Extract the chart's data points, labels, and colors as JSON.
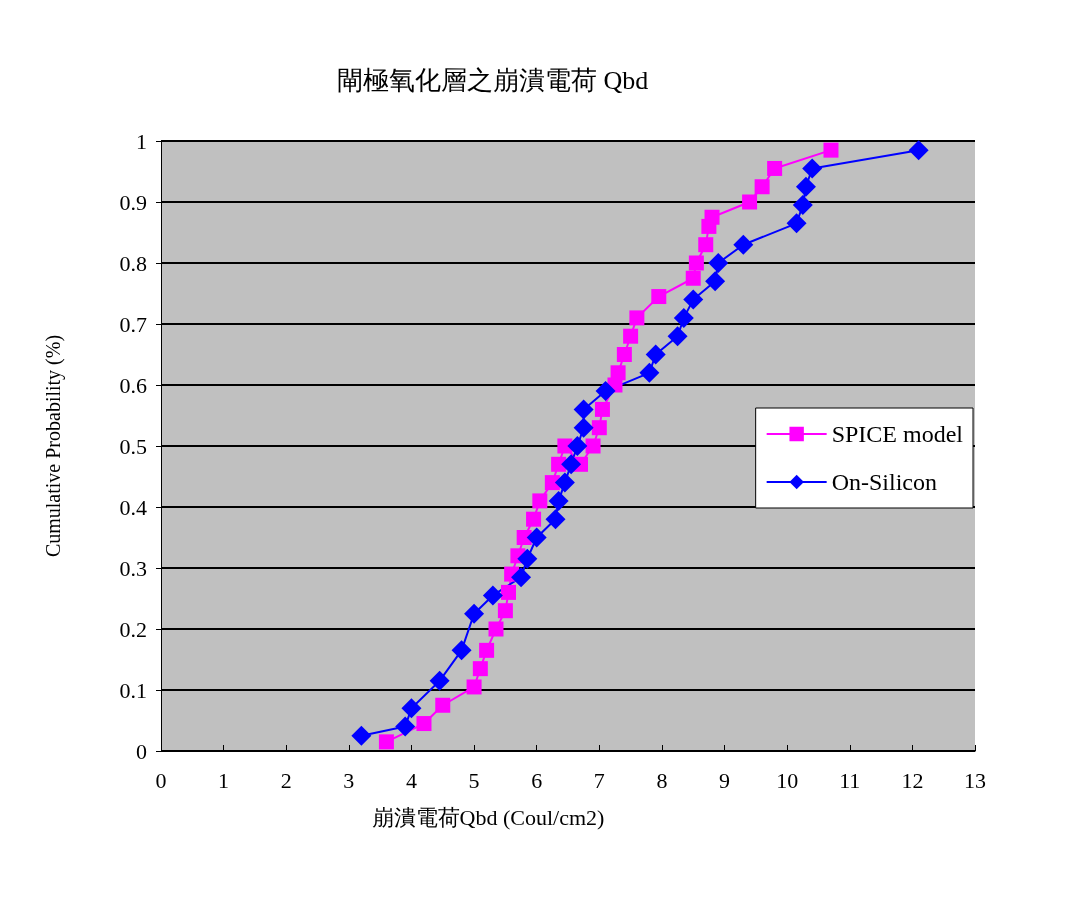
{
  "chart_data": {
    "type": "line",
    "title": "閘極氧化層之崩潰電荷 Qbd",
    "xlabel": "崩潰電荷Qbd (Coul/cm2)",
    "ylabel": "Cumulative Probability (%)",
    "xlim": [
      0,
      13
    ],
    "xticks": [
      0,
      1,
      2,
      3,
      4,
      5,
      6,
      7,
      8,
      9,
      10,
      11,
      12,
      13
    ],
    "ylim": [
      0,
      1
    ],
    "yticks": [
      0,
      0.1,
      0.2,
      0.3,
      0.4,
      0.5,
      0.6,
      0.7,
      0.8,
      0.9,
      1
    ],
    "grid": "y",
    "legend": "right",
    "series": [
      {
        "name": "SPICE model",
        "color": "#ff00ff",
        "marker": "square",
        "x": [
          3.6,
          4.2,
          4.5,
          5.0,
          5.1,
          5.2,
          5.35,
          5.5,
          5.55,
          5.6,
          5.7,
          5.8,
          5.95,
          6.05,
          6.25,
          6.35,
          6.45,
          6.7,
          6.9,
          7.0,
          7.05,
          7.25,
          7.3,
          7.4,
          7.5,
          7.6,
          7.95,
          8.5,
          8.55,
          8.7,
          8.75,
          8.8,
          9.4,
          9.6,
          9.8,
          10.7
        ],
        "values": [
          0.015,
          0.045,
          0.075,
          0.105,
          0.135,
          0.165,
          0.2,
          0.23,
          0.26,
          0.29,
          0.32,
          0.35,
          0.38,
          0.41,
          0.44,
          0.47,
          0.5,
          0.47,
          0.5,
          0.53,
          0.56,
          0.6,
          0.62,
          0.65,
          0.68,
          0.71,
          0.745,
          0.775,
          0.8,
          0.83,
          0.86,
          0.875,
          0.9,
          0.925,
          0.955,
          0.985
        ]
      },
      {
        "name": "On-Silicon",
        "color": "#0000ff",
        "marker": "diamond",
        "x": [
          3.2,
          3.9,
          4.0,
          4.45,
          4.8,
          5.0,
          5.3,
          5.75,
          5.85,
          6.0,
          6.3,
          6.35,
          6.45,
          6.55,
          6.65,
          6.75,
          6.75,
          7.1,
          7.8,
          7.9,
          8.25,
          8.35,
          8.5,
          8.85,
          8.9,
          9.3,
          10.15,
          10.25,
          10.3,
          10.4,
          12.1
        ],
        "values": [
          0.025,
          0.04,
          0.07,
          0.115,
          0.165,
          0.225,
          0.255,
          0.285,
          0.315,
          0.35,
          0.38,
          0.41,
          0.44,
          0.47,
          0.5,
          0.53,
          0.56,
          0.59,
          0.62,
          0.65,
          0.68,
          0.71,
          0.74,
          0.77,
          0.8,
          0.83,
          0.865,
          0.895,
          0.925,
          0.955,
          0.985
        ]
      }
    ]
  }
}
